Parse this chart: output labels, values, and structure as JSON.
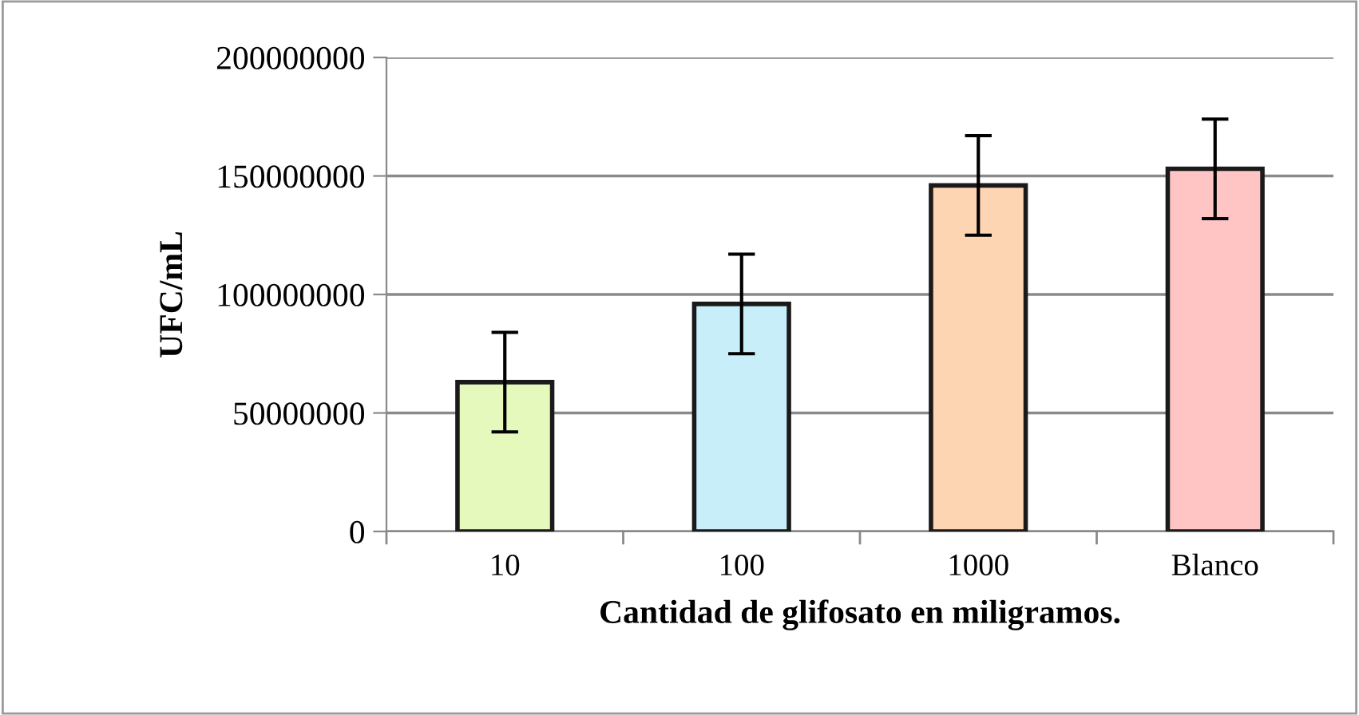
{
  "chart_data": {
    "type": "bar",
    "xlabel": "Cantidad de glifosato en miligramos.",
    "ylabel": "UFC/mL",
    "categories": [
      "10",
      "100",
      "1000",
      "Blanco"
    ],
    "values": [
      63000000,
      96000000,
      146000000,
      153000000
    ],
    "errors": [
      21000000,
      21000000,
      21000000,
      21000000
    ],
    "colors": [
      "#e6f9bd",
      "#c8eefa",
      "#fdd5b2",
      "#ffc4c4"
    ],
    "ylim": [
      0,
      200000000
    ],
    "yticks": [
      0,
      50000000,
      100000000,
      150000000,
      200000000
    ],
    "grid": "y",
    "legend": false
  }
}
